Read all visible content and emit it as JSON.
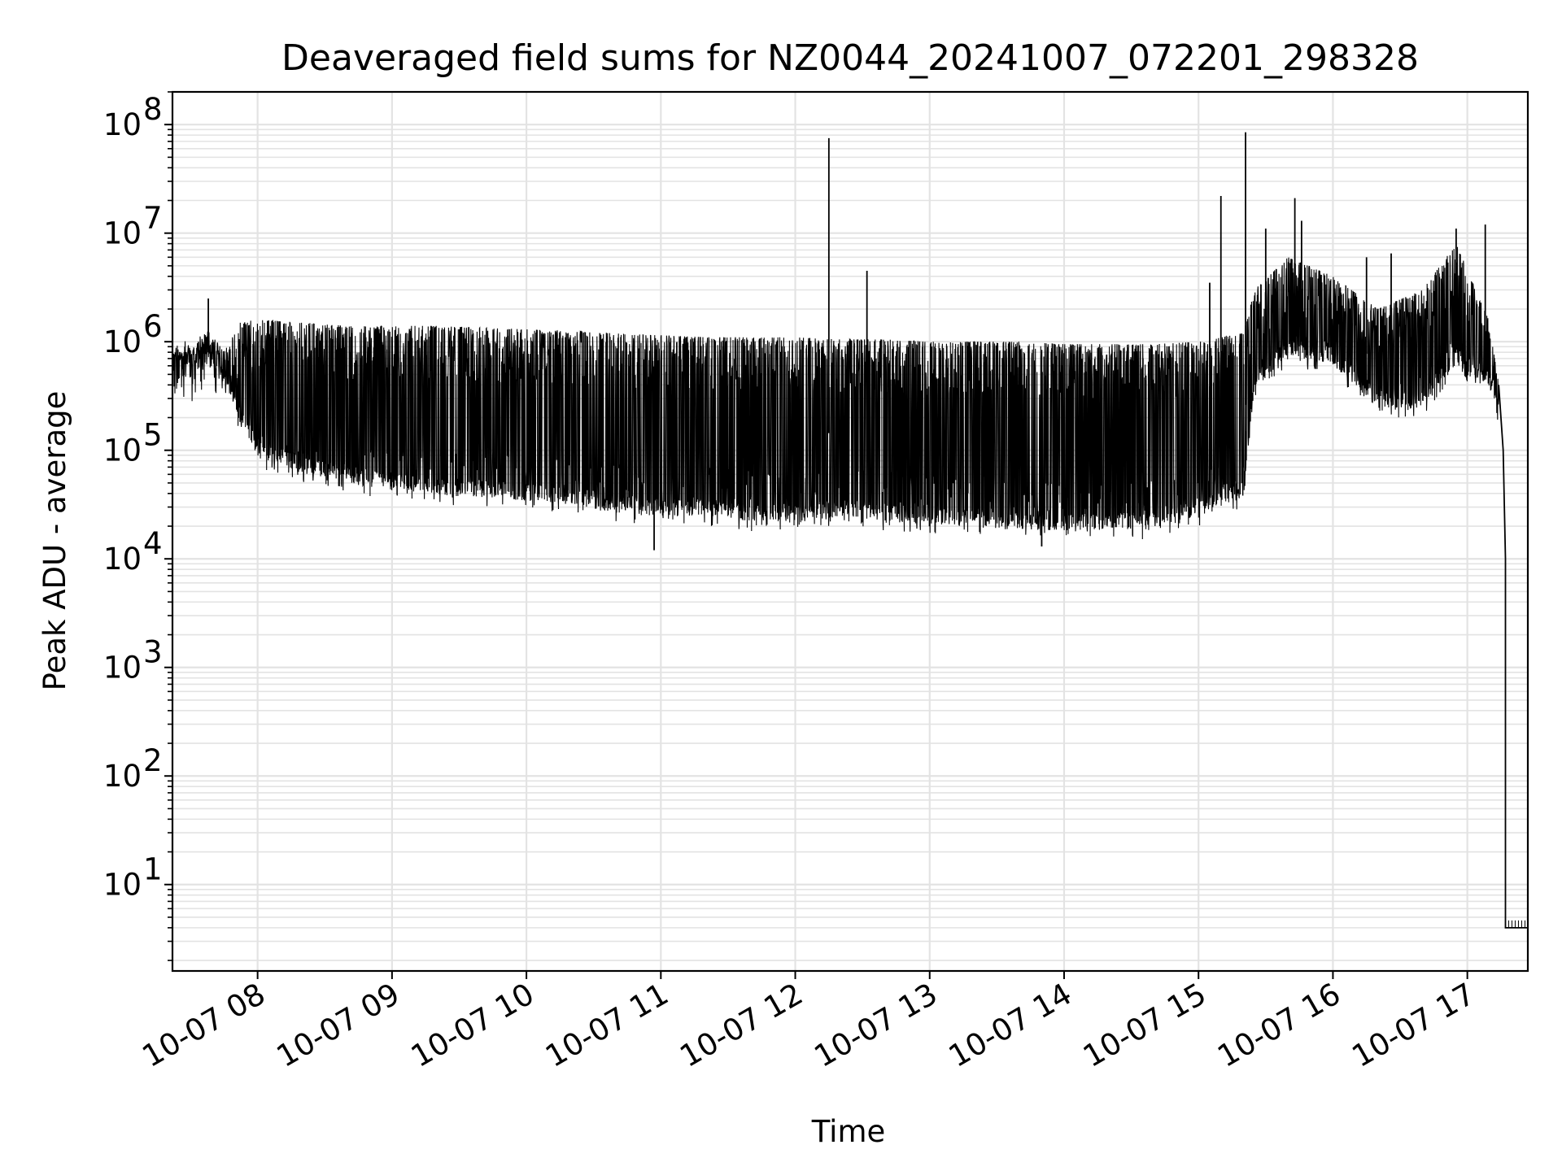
{
  "chart_data": {
    "type": "line",
    "title": "Deaveraged field sums for NZ0044_20241007_072201_298328",
    "xlabel": "Time",
    "ylabel": "Peak ADU - average",
    "yscale": "log",
    "ylim": [
      1.6,
      200000000
    ],
    "xlim": [
      "2024-10-07 07:22",
      "2024-10-07 17:27"
    ],
    "grid": true,
    "line_color": "#000000",
    "x_ticks": [
      {
        "value": "2024-10-07 08:00",
        "label": "10-07 08"
      },
      {
        "value": "2024-10-07 09:00",
        "label": "10-07 09"
      },
      {
        "value": "2024-10-07 10:00",
        "label": "10-07 10"
      },
      {
        "value": "2024-10-07 11:00",
        "label": "10-07 11"
      },
      {
        "value": "2024-10-07 12:00",
        "label": "10-07 12"
      },
      {
        "value": "2024-10-07 13:00",
        "label": "10-07 13"
      },
      {
        "value": "2024-10-07 14:00",
        "label": "10-07 14"
      },
      {
        "value": "2024-10-07 15:00",
        "label": "10-07 15"
      },
      {
        "value": "2024-10-07 16:00",
        "label": "10-07 16"
      },
      {
        "value": "2024-10-07 17:00",
        "label": "10-07 17"
      }
    ],
    "y_ticks": [
      {
        "value": 10,
        "base": "10",
        "exp": "1"
      },
      {
        "value": 100,
        "base": "10",
        "exp": "2"
      },
      {
        "value": 1000,
        "base": "10",
        "exp": "3"
      },
      {
        "value": 10000,
        "base": "10",
        "exp": "4"
      },
      {
        "value": 100000,
        "base": "10",
        "exp": "5"
      },
      {
        "value": 1000000,
        "base": "10",
        "exp": "6"
      },
      {
        "value": 10000000,
        "base": "10",
        "exp": "7"
      },
      {
        "value": 100000000,
        "base": "10",
        "exp": "8"
      }
    ],
    "series": [
      {
        "style": "envelope",
        "points": [
          {
            "t": "2024-10-07 07:22",
            "high": 800000,
            "low": 500000
          },
          {
            "t": "2024-10-07 07:30",
            "high": 800000,
            "low": 600000
          },
          {
            "t": "2024-10-07 07:38",
            "high": 1300000,
            "low": 700000
          },
          {
            "t": "2024-10-07 07:45",
            "high": 800000,
            "low": 400000
          },
          {
            "t": "2024-10-07 07:52",
            "high": 1500000,
            "low": 150000
          },
          {
            "t": "2024-10-07 08:00",
            "high": 1600000,
            "low": 70000
          },
          {
            "t": "2024-10-07 08:20",
            "high": 1500000,
            "low": 50000
          },
          {
            "t": "2024-10-07 08:40",
            "high": 1400000,
            "low": 40000
          },
          {
            "t": "2024-10-07 09:00",
            "high": 1400000,
            "low": 35000
          },
          {
            "t": "2024-10-07 09:20",
            "high": 1400000,
            "low": 32000
          },
          {
            "t": "2024-10-07 09:40",
            "high": 1350000,
            "low": 30000
          },
          {
            "t": "2024-10-07 10:00",
            "high": 1300000,
            "low": 28000
          },
          {
            "t": "2024-10-07 10:20",
            "high": 1250000,
            "low": 25000
          },
          {
            "t": "2024-10-07 10:40",
            "high": 1200000,
            "low": 22000
          },
          {
            "t": "2024-10-07 11:00",
            "high": 1150000,
            "low": 20000
          },
          {
            "t": "2024-10-07 11:20",
            "high": 1100000,
            "low": 20000
          },
          {
            "t": "2024-10-07 11:40",
            "high": 1100000,
            "low": 18000
          },
          {
            "t": "2024-10-07 12:00",
            "high": 1100000,
            "low": 18000
          },
          {
            "t": "2024-10-07 12:20",
            "high": 1050000,
            "low": 20000
          },
          {
            "t": "2024-10-07 12:40",
            "high": 1050000,
            "low": 18000
          },
          {
            "t": "2024-10-07 13:00",
            "high": 1000000,
            "low": 17000
          },
          {
            "t": "2024-10-07 13:20",
            "high": 1000000,
            "low": 16000
          },
          {
            "t": "2024-10-07 13:40",
            "high": 1000000,
            "low": 15000
          },
          {
            "t": "2024-10-07 14:00",
            "high": 950000,
            "low": 15000
          },
          {
            "t": "2024-10-07 14:20",
            "high": 950000,
            "low": 15000
          },
          {
            "t": "2024-10-07 14:40",
            "high": 950000,
            "low": 15000
          },
          {
            "t": "2024-10-07 15:00",
            "high": 1000000,
            "low": 20000
          },
          {
            "t": "2024-10-07 15:20",
            "high": 1200000,
            "low": 30000
          },
          {
            "t": "2024-10-07 15:25",
            "high": 3000000,
            "low": 300000
          },
          {
            "t": "2024-10-07 15:40",
            "high": 6000000,
            "low": 600000
          },
          {
            "t": "2024-10-07 16:00",
            "high": 4000000,
            "low": 500000
          },
          {
            "t": "2024-10-07 16:20",
            "high": 2000000,
            "low": 200000
          },
          {
            "t": "2024-10-07 16:40",
            "high": 3000000,
            "low": 200000
          },
          {
            "t": "2024-10-07 16:55",
            "high": 8000000,
            "low": 500000
          },
          {
            "t": "2024-10-07 17:10",
            "high": 1500000,
            "low": 300000
          },
          {
            "t": "2024-10-07 17:14",
            "high": 400000,
            "low": 200000
          }
        ],
        "spikes": [
          {
            "t": "2024-10-07 07:38",
            "value": 2500000
          },
          {
            "t": "2024-10-07 12:15",
            "value": 75000000
          },
          {
            "t": "2024-10-07 12:32",
            "value": 4500000
          },
          {
            "t": "2024-10-07 15:05",
            "value": 3500000
          },
          {
            "t": "2024-10-07 15:10",
            "value": 22000000
          },
          {
            "t": "2024-10-07 15:21",
            "value": 85000000
          },
          {
            "t": "2024-10-07 15:30",
            "value": 11000000
          },
          {
            "t": "2024-10-07 15:43",
            "value": 21000000
          },
          {
            "t": "2024-10-07 15:46",
            "value": 13000000
          },
          {
            "t": "2024-10-07 16:15",
            "value": 6000000
          },
          {
            "t": "2024-10-07 16:26",
            "value": 6500000
          },
          {
            "t": "2024-10-07 16:55",
            "value": 11000000
          },
          {
            "t": "2024-10-07 17:08",
            "value": 12000000
          },
          {
            "t": "2024-10-07 10:57",
            "value": 12000
          },
          {
            "t": "2024-10-07 13:50",
            "value": 13000
          }
        ],
        "tail": [
          {
            "t": "2024-10-07 17:14",
            "value": 400000
          },
          {
            "t": "2024-10-07 17:16",
            "value": 100000
          },
          {
            "t": "2024-10-07 17:17",
            "value": 10000
          },
          {
            "t": "2024-10-07 17:17",
            "value": 4
          },
          {
            "t": "2024-10-07 17:27",
            "value": 4
          }
        ]
      }
    ]
  }
}
